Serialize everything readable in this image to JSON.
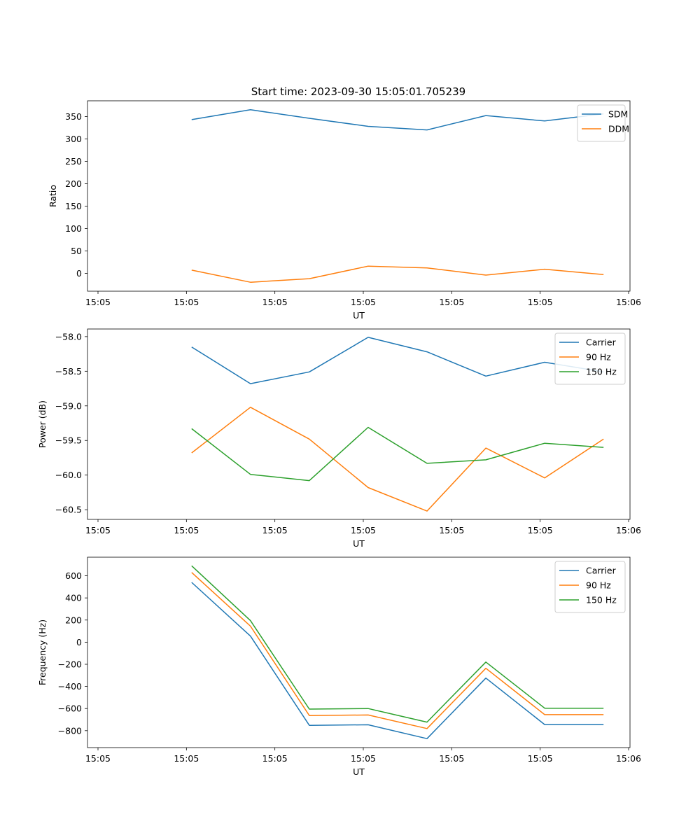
{
  "figure_title": "Start time: 2023-09-30 15:05:01.705239",
  "chart_data": [
    {
      "type": "line",
      "xlabel": "UT",
      "ylabel": "Ratio",
      "x_tick_labels": [
        "15:05",
        "15:05",
        "15:05",
        "15:05",
        "15:05",
        "15:05",
        "15:06"
      ],
      "x": [
        1,
        2,
        3,
        4,
        5,
        6,
        7,
        8
      ],
      "xlim": [
        -0.77,
        8.45
      ],
      "ylim": [
        -40,
        385
      ],
      "y_ticks": [
        0,
        50,
        100,
        150,
        200,
        250,
        300,
        350
      ],
      "legend": "top-right",
      "series": [
        {
          "name": "SDM",
          "color": "#1f77b4",
          "values": [
            343,
            365,
            346,
            328,
            320,
            352,
            340,
            356
          ]
        },
        {
          "name": "DDM",
          "color": "#ff7f0e",
          "values": [
            7,
            -20,
            -12,
            16,
            12,
            -4,
            9,
            -3
          ]
        }
      ]
    },
    {
      "type": "line",
      "xlabel": "UT",
      "ylabel": "Power (dB)",
      "x_tick_labels": [
        "15:05",
        "15:05",
        "15:05",
        "15:05",
        "15:05",
        "15:05",
        "15:06"
      ],
      "x": [
        1,
        2,
        3,
        4,
        5,
        6,
        7,
        8
      ],
      "xlim": [
        -0.77,
        8.45
      ],
      "ylim": [
        -60.64,
        -57.89
      ],
      "y_ticks": [
        -60.5,
        -60.0,
        -59.5,
        -59.0,
        -58.5,
        -58.0
      ],
      "y_tick_labels": [
        "−60.5",
        "−60.0",
        "−59.5",
        "−59.0",
        "−58.5",
        "−58.0"
      ],
      "legend": "top-right",
      "series": [
        {
          "name": "Carrier",
          "color": "#1f77b4",
          "values": [
            -58.15,
            -58.68,
            -58.51,
            -58.01,
            -58.22,
            -58.57,
            -58.37,
            -58.51
          ]
        },
        {
          "name": "90 Hz",
          "color": "#ff7f0e",
          "values": [
            -59.68,
            -59.02,
            -59.48,
            -60.18,
            -60.52,
            -59.61,
            -60.04,
            -59.48
          ]
        },
        {
          "name": "150 Hz",
          "color": "#2ca02c",
          "values": [
            -59.33,
            -59.99,
            -60.08,
            -59.31,
            -59.83,
            -59.78,
            -59.54,
            -59.6
          ]
        }
      ]
    },
    {
      "type": "line",
      "xlabel": "UT",
      "ylabel": "Frequency (Hz)",
      "x_tick_labels": [
        "15:05",
        "15:05",
        "15:05",
        "15:05",
        "15:05",
        "15:05",
        "15:06"
      ],
      "x": [
        1,
        2,
        3,
        4,
        5,
        6,
        7,
        8
      ],
      "xlim": [
        -0.77,
        8.45
      ],
      "ylim": [
        -953,
        768
      ],
      "y_ticks": [
        -800,
        -600,
        -400,
        -200,
        0,
        200,
        400,
        600
      ],
      "y_tick_labels": [
        "−800",
        "−600",
        "−400",
        "−200",
        "0",
        "200",
        "400",
        "600"
      ],
      "legend": "top-right",
      "series": [
        {
          "name": "Carrier",
          "color": "#1f77b4",
          "values": [
            540,
            55,
            -752,
            -747,
            -872,
            -325,
            -745,
            -745
          ]
        },
        {
          "name": "90 Hz",
          "color": "#ff7f0e",
          "values": [
            630,
            145,
            -663,
            -658,
            -781,
            -236,
            -655,
            -655
          ]
        },
        {
          "name": "150 Hz",
          "color": "#2ca02c",
          "values": [
            690,
            195,
            -605,
            -600,
            -723,
            -180,
            -597,
            -597
          ]
        }
      ]
    }
  ]
}
